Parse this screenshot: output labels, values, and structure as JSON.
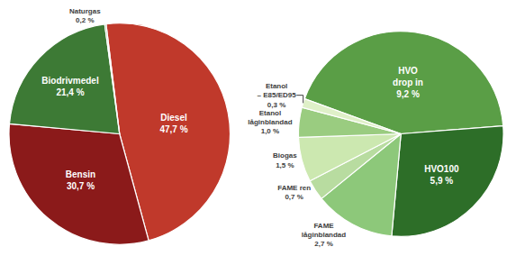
{
  "chart_data": [
    {
      "type": "pie",
      "categories": [
        "Diesel",
        "Bensin",
        "Biodrivmedel",
        "Naturgas"
      ],
      "values": [
        47.7,
        30.7,
        21.4,
        0.2
      ],
      "value_labels": [
        "47,7 %",
        "30,7 %",
        "21,4 %",
        "0,2 %"
      ],
      "colors": [
        "#c0392b",
        "#8b1a1a",
        "#3d7a35",
        "#4a8a40"
      ],
      "data_labels": true
    },
    {
      "type": "pie",
      "categories": [
        "HVO\ndrop in",
        "HVO100",
        "FAME\nlåginblandad",
        "FAME ren",
        "Biogas",
        "Etanol\nlåginblandad",
        "Etanol\n– E85/ED95"
      ],
      "values": [
        9.2,
        5.9,
        2.7,
        0.7,
        1.5,
        1.0,
        0.3
      ],
      "value_labels": [
        "9,2 %",
        "5,9 %",
        "2,7 %",
        "0,7 %",
        "1,5 %",
        "1,0 %",
        "0,3 %"
      ],
      "colors": [
        "#5a9e46",
        "#2d6e28",
        "#8dc87a",
        "#b8dca0",
        "#cce8b0",
        "#9acc80",
        "#dff0c8"
      ],
      "data_labels": true
    }
  ]
}
